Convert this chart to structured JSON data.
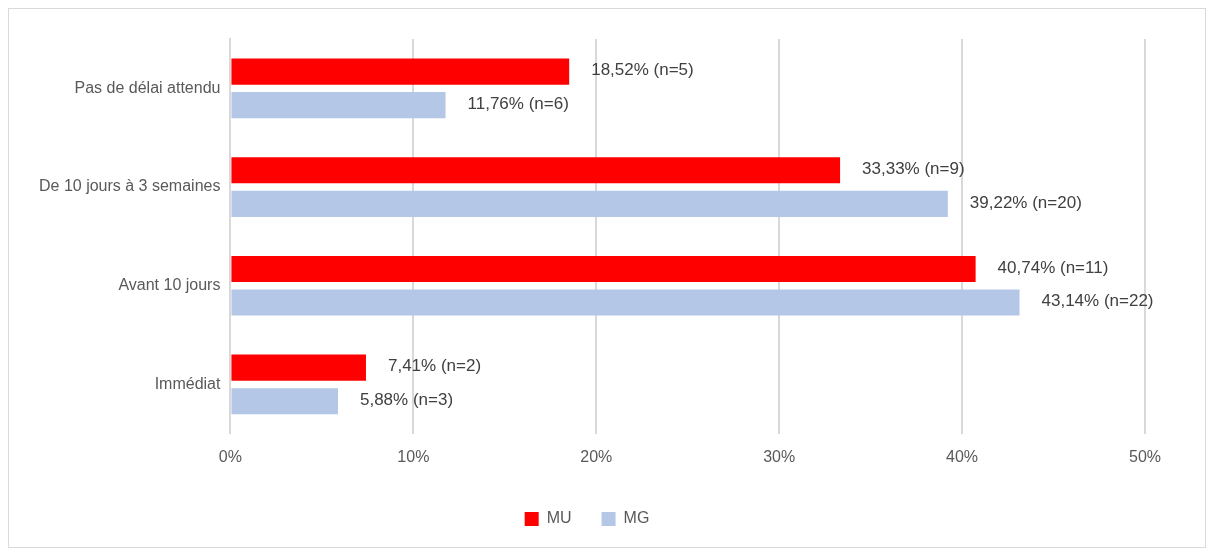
{
  "chart_data": {
    "type": "bar",
    "orientation": "horizontal",
    "categories": [
      "Pas de délai attendu",
      "De 10 jours à 3 semaines",
      "Avant 10 jours",
      "Immédiat"
    ],
    "series": [
      {
        "name": "MU",
        "color": "#ff0000",
        "values": [
          18.52,
          33.33,
          40.74,
          7.41
        ],
        "value_labels": [
          "18,52% (n=5)",
          "33,33% (n=9)",
          "40,74% (n=11)",
          "7,41% (n=2)"
        ]
      },
      {
        "name": "MG",
        "color": "#b4c7e7",
        "values": [
          11.76,
          39.22,
          43.14,
          5.88
        ],
        "value_labels": [
          "11,76% (n=6)",
          "39,22% (n=20)",
          "43,14% (n=22)",
          "5,88% (n=3)"
        ]
      }
    ],
    "xlim": [
      0,
      50
    ],
    "xticks": [
      {
        "value": 0,
        "label": "0%"
      },
      {
        "value": 10,
        "label": "10%"
      },
      {
        "value": 20,
        "label": "20%"
      },
      {
        "value": 30,
        "label": "30%"
      },
      {
        "value": 40,
        "label": "40%"
      },
      {
        "value": 50,
        "label": "50%"
      }
    ],
    "grid": "x",
    "legend": "bottom"
  }
}
